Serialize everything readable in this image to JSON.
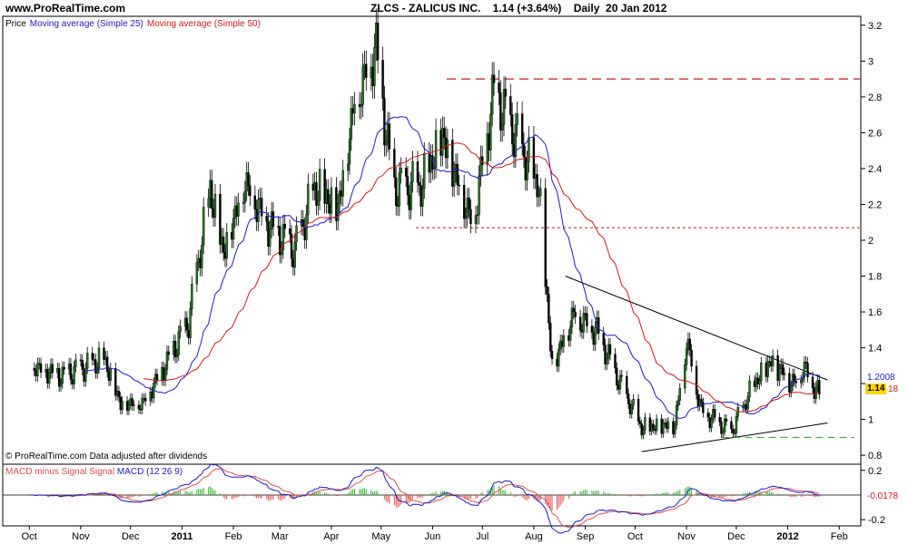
{
  "header": {
    "site": "www.ProRealTime.com",
    "title": "ZLCS - ZALICUS INC.    1.14 (+3.64%)    Daily  20 Jan 2012"
  },
  "legend": {
    "price": "Price",
    "ma25": "Moving average (Simple 25)",
    "ma50": "Moving average (Simple 50)"
  },
  "credit": "© ProRealTime.com  Data adjusted after dividends",
  "macd_legend": {
    "part1": "MACD minus Signal",
    "part2": "Signal",
    "part3": "MACD (12 26 9)"
  },
  "tags": {
    "ma25": "1.2008",
    "last": "1.14",
    "ma50": "18",
    "macd": "-0.0178"
  },
  "colors": {
    "ma25": "#1c1cc8",
    "ma50": "#d81818",
    "candle_up": "#1a7a1a",
    "macd_up": "#3cb43c",
    "macd_down": "#e05050",
    "resistance": "#c81e1e",
    "support_green": "#2aa02a"
  },
  "chart_data": [
    {
      "type": "candlestick",
      "title": "ZLCS - ZALICUS INC.",
      "ylim": [
        0.75,
        3.25
      ],
      "y_ticks": [
        0.8,
        1,
        1.2,
        1.4,
        1.6,
        1.8,
        2,
        2.2,
        2.4,
        2.6,
        2.8,
        3,
        3.2
      ],
      "y_tick_labels": [
        "0.8",
        "1",
        "1.2",
        "1.4",
        "1.6",
        "1.8",
        "2",
        "2.2",
        "2.4",
        "2.6",
        "2.8",
        "3",
        "3.2"
      ],
      "x_labels": [
        "Oct",
        "Nov",
        "Dec",
        "2011",
        "Feb",
        "Mar",
        "Apr",
        "May",
        "Jun",
        "Jul",
        "Aug",
        "Sep",
        "Oct",
        "Nov",
        "Dec",
        "2012",
        "Feb"
      ],
      "price_knots": [
        [
          "2010-10-01",
          1.32
        ],
        [
          "2010-10-20",
          1.25
        ],
        [
          "2010-11-05",
          1.3
        ],
        [
          "2010-11-15",
          1.35
        ],
        [
          "2010-11-25",
          1.1
        ],
        [
          "2010-12-08",
          1.1
        ],
        [
          "2010-12-20",
          1.28
        ],
        [
          "2011-01-05",
          1.55
        ],
        [
          "2011-01-18",
          2.3
        ],
        [
          "2011-01-26",
          1.95
        ],
        [
          "2011-02-08",
          2.35
        ],
        [
          "2011-02-22",
          2.1
        ],
        [
          "2011-03-10",
          1.95
        ],
        [
          "2011-03-22",
          2.3
        ],
        [
          "2011-04-05",
          2.2
        ],
        [
          "2011-04-15",
          2.8
        ],
        [
          "2011-04-28",
          3.1
        ],
        [
          "2011-05-08",
          2.3
        ],
        [
          "2011-05-25",
          2.3
        ],
        [
          "2011-06-07",
          2.6
        ],
        [
          "2011-06-25",
          2.1
        ],
        [
          "2011-07-08",
          2.85
        ],
        [
          "2011-07-20",
          2.6
        ],
        [
          "2011-08-04",
          2.3
        ],
        [
          "2011-08-12",
          1.3
        ],
        [
          "2011-08-25",
          1.6
        ],
        [
          "2011-09-08",
          1.5
        ],
        [
          "2011-09-22",
          1.2
        ],
        [
          "2011-10-05",
          0.95
        ],
        [
          "2011-10-25",
          0.98
        ],
        [
          "2011-11-01",
          1.45
        ],
        [
          "2011-11-10",
          1.05
        ],
        [
          "2011-11-28",
          0.93
        ],
        [
          "2011-12-12",
          1.2
        ],
        [
          "2011-12-22",
          1.33
        ],
        [
          "2012-01-05",
          1.2
        ],
        [
          "2012-01-10",
          1.3
        ],
        [
          "2012-01-20",
          1.14
        ]
      ],
      "last_close": 1.14,
      "ma25_last": 1.2008,
      "resistance_level": 2.9,
      "support_level": 2.07,
      "downtrend_line": [
        [
          "2011-08-20",
          1.8
        ],
        [
          "2012-01-25",
          1.22
        ]
      ],
      "uptrend_line": [
        [
          "2011-10-05",
          0.82
        ],
        [
          "2012-01-25",
          0.98
        ]
      ],
      "green_level": [
        [
          "2011-11-22",
          0.9
        ],
        [
          "2012-02-10",
          0.9
        ]
      ]
    },
    {
      "type": "macd",
      "title": "MACD (12 26 9)",
      "ylim": [
        -0.25,
        0.25
      ],
      "y_ticks": [
        0.2,
        -0.2
      ],
      "y_tick_labels": [
        "0.2",
        "-0.2"
      ],
      "last_value": -0.0178
    }
  ]
}
